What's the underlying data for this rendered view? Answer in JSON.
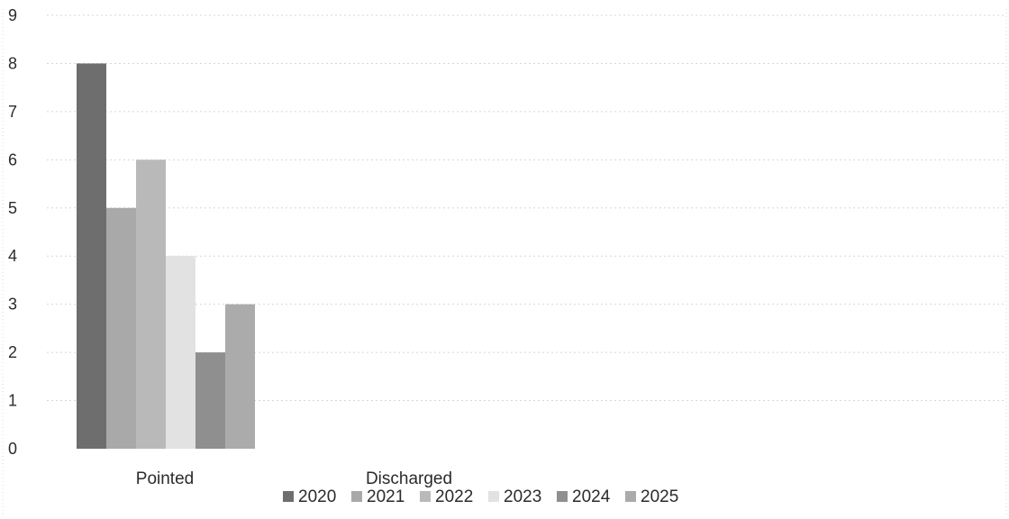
{
  "chart_data": {
    "type": "bar",
    "title": "",
    "xlabel": "",
    "ylabel": "",
    "categories": [
      "Pointed",
      "Discharged"
    ],
    "series": [
      {
        "name": "2020",
        "values": [
          8,
          null
        ],
        "color": "#6e6e6e"
      },
      {
        "name": "2021",
        "values": [
          5,
          null
        ],
        "color": "#a9a9a9"
      },
      {
        "name": "2022",
        "values": [
          6,
          null
        ],
        "color": "#b9b9b9"
      },
      {
        "name": "2023",
        "values": [
          4,
          null
        ],
        "color": "#e2e2e2"
      },
      {
        "name": "2024",
        "values": [
          2,
          null
        ],
        "color": "#8f8f8f"
      },
      {
        "name": "2025",
        "values": [
          3,
          null
        ],
        "color": "#ababab"
      }
    ],
    "ylim": [
      0,
      9
    ],
    "yticks": [
      "0",
      "1",
      "2",
      "3",
      "4",
      "5",
      "6",
      "7",
      "8",
      "9"
    ],
    "grid": true,
    "legend": "bottom"
  }
}
